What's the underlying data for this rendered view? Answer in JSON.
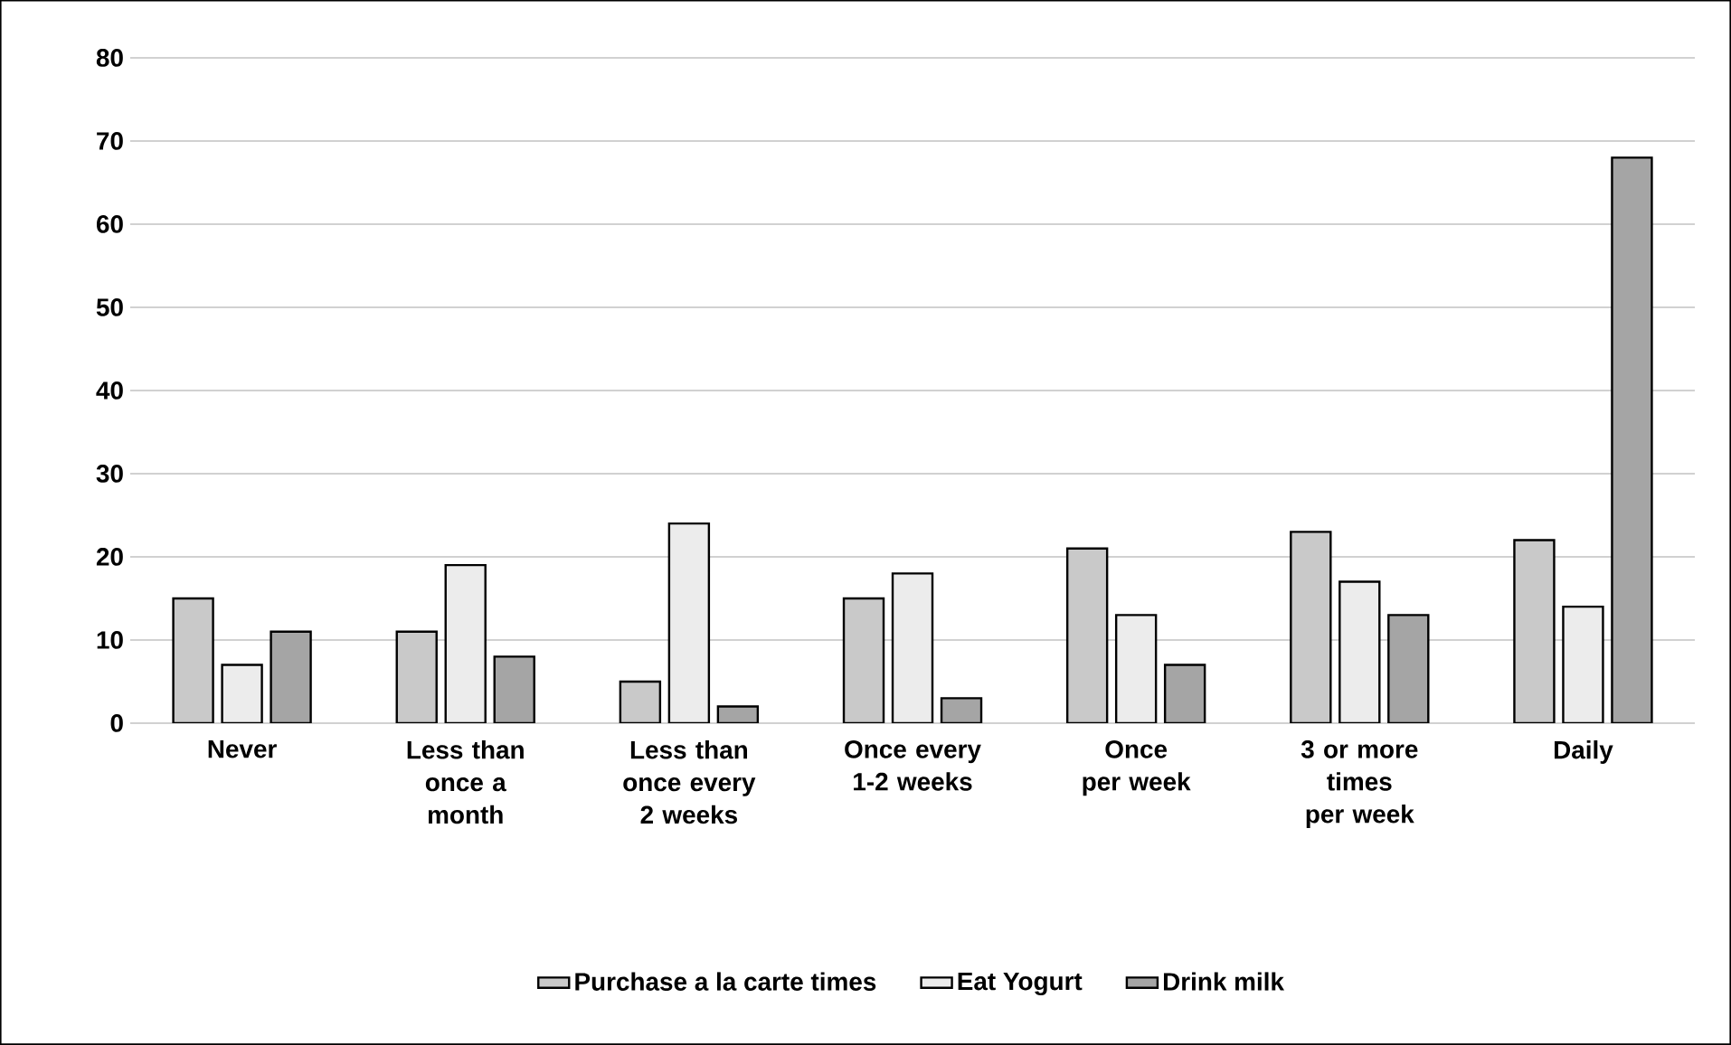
{
  "chart_data": {
    "type": "bar",
    "categories": [
      "Never",
      "Less than once a month",
      "Less than once every 2 weeks",
      "Once every 1-2 weeks",
      "Once per week",
      "3 or more times per week",
      "Daily"
    ],
    "series": [
      {
        "name": "Purchase a la carte times",
        "color": "#c9c9c9",
        "values": [
          15,
          11,
          5,
          15,
          21,
          23,
          22
        ]
      },
      {
        "name": "Eat Yogurt",
        "color": "#ececec",
        "values": [
          7,
          19,
          24,
          18,
          13,
          17,
          14
        ]
      },
      {
        "name": "Drink milk",
        "color": "#a5a5a5",
        "values": [
          11,
          8,
          2,
          3,
          7,
          13,
          68
        ]
      }
    ],
    "ylim": [
      0,
      80
    ],
    "yticks": [
      0,
      10,
      20,
      30,
      40,
      50,
      60,
      70,
      80
    ],
    "grid": "y",
    "legend": "bottom"
  }
}
